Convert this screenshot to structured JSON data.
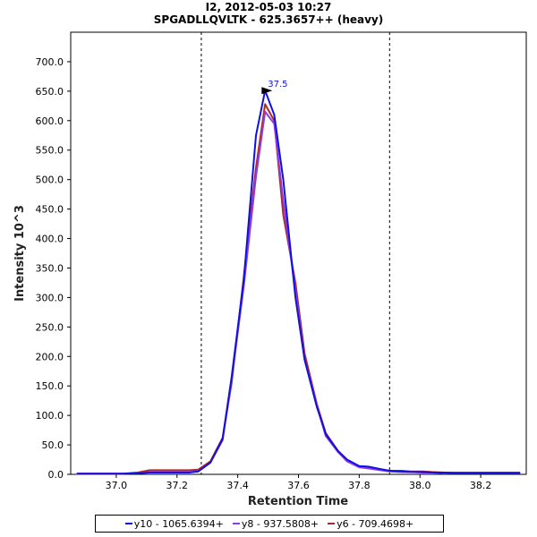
{
  "chart_data": {
    "type": "line",
    "title": "I2, 2012-05-03 10:27",
    "subtitle": "SPGADLLQVLTK - 625.3657++ (heavy)",
    "xlabel": "Retention Time",
    "ylabel": "Intensity 10^3",
    "xlim": [
      36.85,
      38.35
    ],
    "ylim": [
      0,
      750
    ],
    "xticks": [
      37.0,
      37.2,
      37.4,
      37.6,
      37.8,
      38.0,
      38.2
    ],
    "xtick_labels": [
      "37.0",
      "37.2",
      "37.4",
      "37.6",
      "37.8",
      "38.0",
      "38.2"
    ],
    "yticks": [
      0,
      50,
      100,
      150,
      200,
      250,
      300,
      350,
      400,
      450,
      500,
      550,
      600,
      650,
      700
    ],
    "ytick_labels": [
      "0.0",
      "50.0",
      "100.0",
      "150.0",
      "200.0",
      "250.0",
      "300.0",
      "350.0",
      "400.0",
      "450.0",
      "500.0",
      "550.0",
      "600.0",
      "650.0",
      "700.0"
    ],
    "grid": false,
    "legend_position": "bottom",
    "boundaries": [
      37.28,
      37.9
    ],
    "peak_annotation": {
      "label": "37.5",
      "x": 37.52,
      "y": 651
    },
    "x": [
      36.87,
      36.92,
      36.97,
      37.02,
      37.07,
      37.11,
      37.16,
      37.2,
      37.24,
      37.27,
      37.31,
      37.35,
      37.38,
      37.42,
      37.46,
      37.49,
      37.52,
      37.55,
      37.59,
      37.62,
      37.66,
      37.69,
      37.73,
      37.76,
      37.8,
      37.83,
      37.87,
      37.9,
      37.94,
      37.97,
      38.01,
      38.04,
      38.08,
      38.11,
      38.15,
      38.18,
      38.22,
      38.25,
      38.29,
      38.33
    ],
    "series": [
      {
        "name": "y10 - 1065.6394+",
        "color": "#1010e0",
        "values": [
          1,
          1,
          1,
          1,
          2,
          3,
          3,
          3,
          3,
          5,
          20,
          60,
          165,
          330,
          575,
          651,
          610,
          500,
          300,
          195,
          115,
          68,
          40,
          25,
          14,
          13,
          9,
          6,
          5,
          4,
          4,
          3,
          3,
          2,
          2,
          2,
          2,
          2,
          2,
          2
        ]
      },
      {
        "name": "y8 - 937.5808+",
        "color": "#8a3ce8",
        "values": [
          1,
          1,
          1,
          1,
          2,
          4,
          4,
          4,
          4,
          5,
          20,
          58,
          160,
          320,
          505,
          615,
          595,
          465,
          310,
          195,
          118,
          65,
          38,
          22,
          12,
          10,
          7,
          5,
          4,
          4,
          3,
          3,
          2,
          2,
          2,
          2,
          2,
          2,
          2,
          2
        ]
      },
      {
        "name": "y6 - 709.4698+",
        "color": "#b02828",
        "values": [
          1,
          1,
          1,
          1,
          3,
          7,
          7,
          7,
          7,
          8,
          22,
          62,
          155,
          335,
          520,
          628,
          600,
          440,
          325,
          205,
          120,
          70,
          40,
          24,
          13,
          11,
          8,
          6,
          6,
          5,
          5,
          4,
          3,
          3,
          3,
          3,
          3,
          3,
          3,
          3
        ]
      }
    ]
  }
}
